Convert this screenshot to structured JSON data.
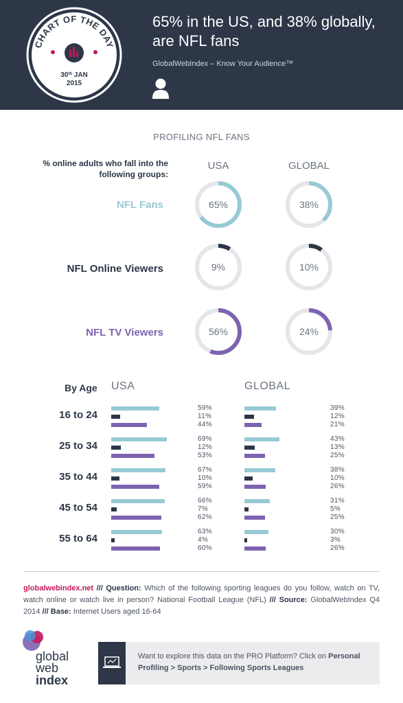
{
  "header": {
    "badge": {
      "top": "CHART OF THE DAY",
      "date": "30",
      "date_sup": "th",
      "date_rest": " JAN",
      "year": "2015"
    },
    "title": "65% in the US, and 38% globally, are NFL fans",
    "tagline": "GlobalWebIndex – Know Your Audience™"
  },
  "section_title": "PROFILING NFL FANS",
  "groups_label": "% online adults who fall into the following groups:",
  "col_usa": "USA",
  "col_global": "GLOBAL",
  "colors": {
    "fans": "#98cad5",
    "online": "#2b3646",
    "tv": "#7e63b0",
    "track": "#e4e6ea",
    "header": "#2d3748",
    "accent": "#c2185b"
  },
  "footer": {
    "site": "globalwebindex.net",
    "q_label": "/// Question:",
    "question": " Which of the following sporting leagues do you follow, watch on TV, watch online or watch live in person? National Football League (NFL) ",
    "source_label": "/// Source:",
    "source": " GlobalWebIndex Q4 2014 ",
    "base_label": "/// Base:",
    "base": " Internet Users aged 16-64"
  },
  "logo": {
    "line1": "global",
    "line2": "web",
    "line3": "index"
  },
  "promo": {
    "text": "Want to explore this data on the PRO Platform? Click on ",
    "path": "Personal Profiling > Sports > Following Sports Leagues"
  },
  "chart_data": [
    {
      "type": "donut",
      "title": "PROFILING NFL FANS",
      "categories": [
        "NFL Fans",
        "NFL Online Viewers",
        "NFL TV Viewers"
      ],
      "series": [
        {
          "name": "USA",
          "values": [
            65,
            9,
            56
          ]
        },
        {
          "name": "GLOBAL",
          "values": [
            38,
            10,
            24
          ]
        }
      ]
    },
    {
      "type": "bar",
      "title": "By Age",
      "categories": [
        "16 to 24",
        "25 to 34",
        "35 to 44",
        "45 to 54",
        "55 to 64"
      ],
      "groups": [
        "USA",
        "GLOBAL"
      ],
      "series": [
        {
          "name": "NFL Fans",
          "usa": [
            59,
            69,
            67,
            66,
            63
          ],
          "global": [
            39,
            43,
            38,
            31,
            30
          ]
        },
        {
          "name": "NFL Online Viewers",
          "usa": [
            11,
            12,
            10,
            7,
            4
          ],
          "global": [
            12,
            13,
            10,
            5,
            3
          ]
        },
        {
          "name": "NFL TV Viewers",
          "usa": [
            44,
            53,
            59,
            62,
            60
          ],
          "global": [
            21,
            25,
            26,
            25,
            26
          ]
        }
      ]
    }
  ]
}
